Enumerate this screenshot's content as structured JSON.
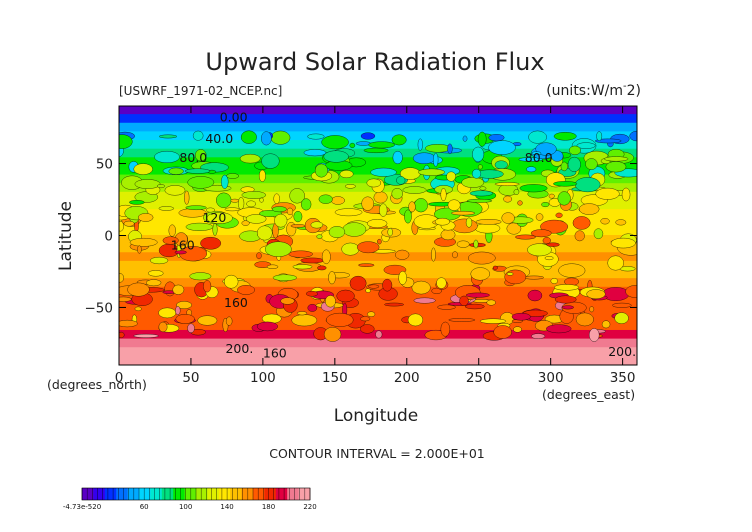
{
  "chart_data": {
    "type": "heatmap",
    "title": "Upward Solar Radiation Flux",
    "file_label": "[USWRF_1971-02_NCEP.nc]",
    "units_label": "(units:W/m^-2)",
    "units_prefix": "(units:W/m",
    "units_exp": "-",
    "units_suffix": "2)",
    "xlabel": "Longitude",
    "ylabel": "Latitude",
    "x_unit_label": "(degrees_east)",
    "y_unit_label": "(degrees_north)",
    "xlim": [
      0,
      360
    ],
    "ylim": [
      -90,
      90
    ],
    "x_ticks": [
      0,
      50,
      100,
      150,
      200,
      250,
      300,
      350
    ],
    "x_tick_labels": [
      "0",
      "50",
      "100",
      "150",
      "200",
      "250",
      "300",
      "350"
    ],
    "y_ticks": [
      50,
      0,
      -50
    ],
    "y_tick_labels": [
      "50",
      "0",
      "−50"
    ],
    "contour_interval_text": "CONTOUR INTERVAL = 2.000E+01",
    "contour_interval": 20,
    "contour_labels": [
      {
        "text": "0.00",
        "lon": 70,
        "lat": 82
      },
      {
        "text": "40.0",
        "lon": 60,
        "lat": 67
      },
      {
        "text": "80.0",
        "lon": 42,
        "lat": 54
      },
      {
        "text": "80.0",
        "lon": 282,
        "lat": 54
      },
      {
        "text": "120",
        "lon": 58,
        "lat": 12
      },
      {
        "text": "160",
        "lon": 36,
        "lat": -7
      },
      {
        "text": "160",
        "lon": 73,
        "lat": -47
      },
      {
        "text": "200.",
        "lon": 74,
        "lat": -79
      },
      {
        "text": "160",
        "lon": 100,
        "lat": -82
      },
      {
        "text": "200.",
        "lon": 340,
        "lat": -81
      }
    ],
    "colorbar": {
      "tick_labels": [
        "-4.73e-520",
        "60",
        "100",
        "140",
        "180",
        "220"
      ],
      "tick_values": [
        0,
        60,
        100,
        140,
        180,
        220
      ],
      "range": [
        0,
        220
      ]
    },
    "zonal_mean_profile": {
      "lat": [
        90,
        84,
        78,
        72,
        66,
        60,
        54,
        48,
        42,
        36,
        30,
        24,
        18,
        12,
        6,
        0,
        -6,
        -12,
        -18,
        -24,
        -30,
        -36,
        -42,
        -48,
        -54,
        -60,
        -66,
        -72,
        -78,
        -84,
        -90
      ],
      "value": [
        0,
        10,
        35,
        55,
        70,
        78,
        85,
        92,
        100,
        108,
        118,
        125,
        130,
        135,
        140,
        140,
        150,
        155,
        155,
        150,
        152,
        160,
        170,
        175,
        170,
        160,
        175,
        200,
        215,
        220,
        220
      ]
    }
  },
  "colors": {
    "palette": [
      "#5a00c4",
      "#3300ee",
      "#0030ff",
      "#0070ff",
      "#00aaff",
      "#00d4ff",
      "#00e8d0",
      "#00e080",
      "#00ea00",
      "#60f000",
      "#a8f000",
      "#e0f000",
      "#ffe600",
      "#ffc000",
      "#ff9000",
      "#ff5a00",
      "#f02800",
      "#e00040",
      "#f07a90",
      "#f8a0a8"
    ]
  }
}
